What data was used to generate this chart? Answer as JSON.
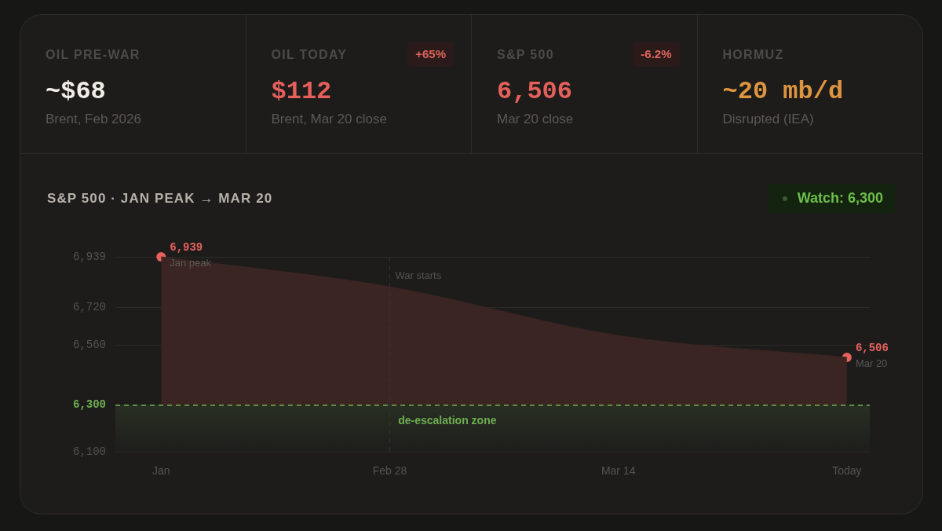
{
  "chart_data": [
    {
      "type": "other",
      "title": "OIL PRE-WAR",
      "subtitle": "Brent, Feb 2026",
      "annotations": [
        "~$68"
      ]
    },
    {
      "type": "other",
      "title": "OIL TODAY",
      "subtitle": "Brent, Mar 20 close",
      "annotations": [
        "$112",
        "+65%"
      ]
    },
    {
      "type": "other",
      "title": "S&P 500",
      "subtitle": "Mar 20 close",
      "annotations": [
        "6,506",
        "-6.2%"
      ]
    },
    {
      "type": "other",
      "title": "HORMUZ",
      "subtitle": "Disrupted (IEA)",
      "annotations": [
        "~20 mb/d"
      ]
    },
    {
      "type": "area",
      "title": "S&P 500 · JAN PEAK → MAR 20",
      "categories": [
        "Jan",
        "Feb 28",
        "Mar 14",
        "Today"
      ],
      "series": [
        {
          "color": "#3a2522",
          "values": [
            6939,
            6810,
            6600,
            6506
          ]
        },
        {
          "type": "scatter",
          "color": "#e8625c",
          "x": [
            "Jan",
            "Today"
          ],
          "values": [
            6939,
            6506
          ],
          "value_labels": [
            "6,939",
            "6,506"
          ],
          "marker": "circle"
        }
      ],
      "ylim": [
        6100,
        6939
      ],
      "yticks": [
        {
          "value": 6100,
          "label": "6,100"
        },
        {
          "value": 6300,
          "label": "6,300"
        },
        {
          "value": 6560,
          "label": "6,560"
        },
        {
          "value": 6720,
          "label": "6,720"
        },
        {
          "value": 6939,
          "label": "6,939"
        }
      ],
      "grid": "y",
      "ref_lines": [
        {
          "axis": "y",
          "value": 6300,
          "color": "#6fae52",
          "line_style": "dashed"
        },
        {
          "axis": "x",
          "value": "Feb 28",
          "label": "War starts",
          "color": "#363534",
          "line_style": "dashed"
        }
      ],
      "bands": [
        {
          "axis": "y",
          "from": 6100,
          "to": 6300,
          "label": "de-escalation zone",
          "color": "#6fae52"
        }
      ],
      "annotations": [
        "Watch: 6,300",
        {
          "text": "Jan peak",
          "x": "Jan",
          "y": 6939
        },
        {
          "text": "Mar 20",
          "x": "Today",
          "y": 6506
        }
      ]
    }
  ]
}
